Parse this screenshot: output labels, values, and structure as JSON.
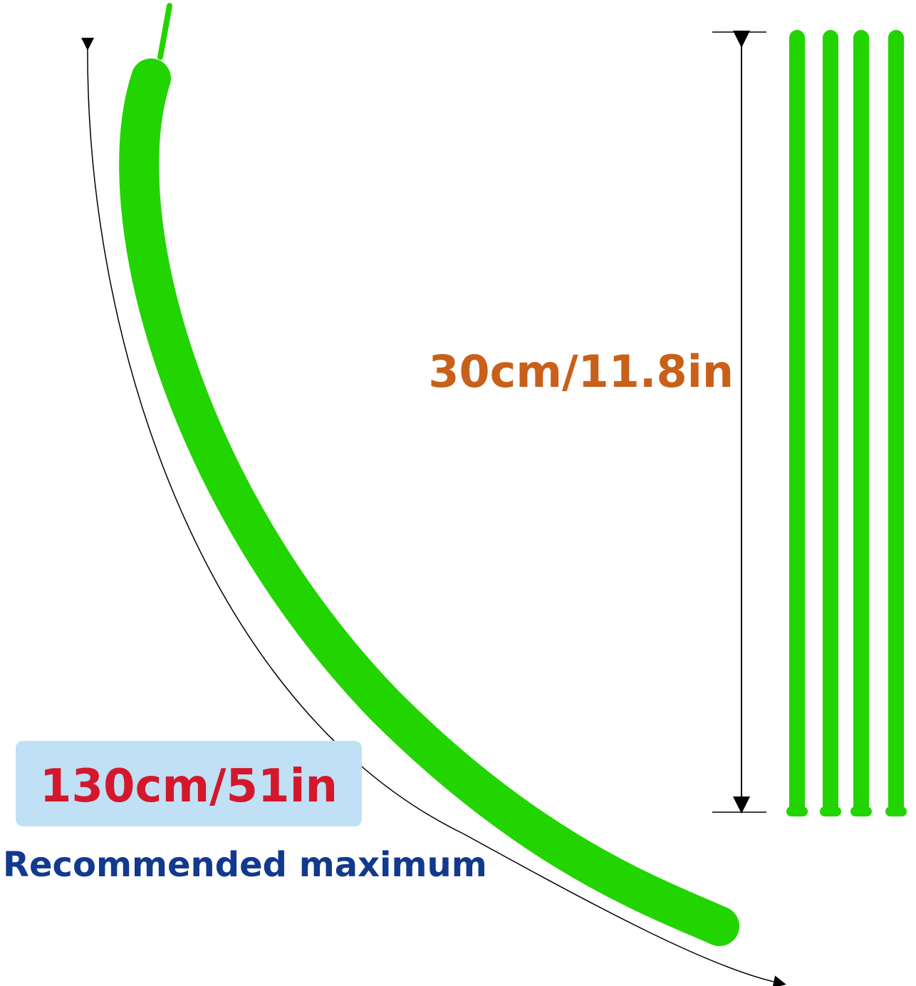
{
  "labels": {
    "uninflated_length": "30cm/11.8in",
    "inflated_length": "130cm/51in",
    "note": "Recommended maximum"
  }
}
